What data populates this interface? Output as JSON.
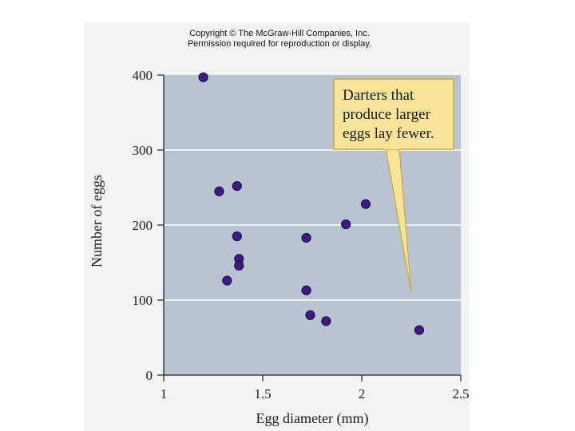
{
  "copyright": {
    "line1": "Copyright © The McGraw-Hill Companies, Inc.",
    "line2": "Permission required for reproduction or display."
  },
  "chart_data": {
    "type": "scatter",
    "title": "",
    "xlabel": "Egg diameter (mm)",
    "ylabel": "Number of eggs",
    "xlim": [
      1,
      2.5
    ],
    "ylim": [
      0,
      400
    ],
    "x_ticks": [
      1,
      1.5,
      2,
      2.5
    ],
    "x_tick_labels": [
      "1",
      "1.5",
      "2",
      "2.5"
    ],
    "y_ticks": [
      0,
      100,
      200,
      300,
      400
    ],
    "y_tick_labels": [
      "0",
      "100",
      "200",
      "300",
      "400"
    ],
    "grid": true,
    "series": [
      {
        "name": "Darters",
        "x": [
          1.2,
          1.28,
          1.37,
          1.37,
          1.38,
          1.38,
          1.32,
          1.72,
          1.72,
          1.74,
          1.82,
          1.92,
          2.02,
          2.29
        ],
        "y": [
          397,
          245,
          252,
          185,
          155,
          146,
          126,
          183,
          113,
          80,
          72,
          201,
          228,
          60
        ]
      }
    ],
    "annotation": {
      "lines": [
        "Darters that",
        "produce larger",
        "eggs lay fewer."
      ],
      "points_to": [
        2.25,
        110
      ]
    },
    "colors": {
      "plot_bg": "#b8c4d2",
      "grid": "#ffffff",
      "marker_fill": "#3d1a84",
      "marker_stroke": "#1a0a3e",
      "callout_fill": "#f7e49a",
      "callout_stroke": "#c8a830",
      "axis": "#222222"
    }
  }
}
